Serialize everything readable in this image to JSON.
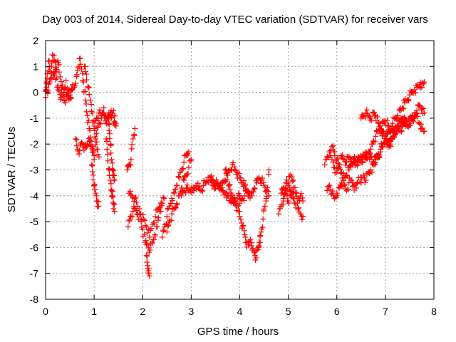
{
  "chart_data": {
    "type": "scatter",
    "title": "Day 003 of 2014, Sidereal Day-to-day VTEC variation (SDTVAR) for receiver vars",
    "xlabel": "GPS time / hours",
    "ylabel": "SDTVAR / TECUs",
    "xlim": [
      0,
      8
    ],
    "ylim": [
      -8,
      2
    ],
    "xticks": [
      "0",
      "1",
      "2",
      "3",
      "4",
      "5",
      "6",
      "7",
      "8"
    ],
    "yticks": [
      "2",
      "1",
      "0",
      "-1",
      "-2",
      "-3",
      "-4",
      "-5",
      "-6",
      "-7",
      "-8"
    ],
    "grid": true,
    "marker": "+",
    "color": "#ff0000",
    "series": [
      {
        "name": "vars",
        "segments": [
          {
            "x": [
              0.0,
              0.03,
              0.06,
              0.1,
              0.14,
              0.18,
              0.22,
              0.26,
              0.3,
              0.34,
              0.38,
              0.42,
              0.46,
              0.5,
              0.55,
              0.6
            ],
            "y": [
              0.1,
              0.55,
              1.2,
              0.8,
              1.45,
              1.25,
              0.9,
              1.15,
              0.6,
              0.2,
              0.0,
              0.45,
              -0.15,
              -0.25,
              0.1,
              0.25
            ]
          },
          {
            "x": [
              0.0,
              0.02,
              0.05,
              0.08,
              0.12,
              0.16,
              0.2,
              0.24,
              0.28,
              0.32,
              0.36,
              0.4,
              0.44,
              0.48,
              0.52,
              0.56
            ],
            "y": [
              -0.2,
              0.2,
              0.05,
              0.4,
              0.75,
              0.65,
              0.8,
              0.2,
              0.05,
              -0.2,
              -0.1,
              -0.3,
              -0.15,
              0.1,
              -0.2,
              0.3
            ]
          },
          {
            "x": [
              0.62,
              0.66,
              0.7,
              0.74,
              0.78,
              0.82,
              0.86,
              0.9,
              0.94,
              0.98,
              1.0
            ],
            "y": [
              0.35,
              0.85,
              1.3,
              0.9,
              0.4,
              -0.3,
              -0.9,
              -1.4,
              -1.9,
              -2.3,
              -2.6
            ]
          },
          {
            "x": [
              0.62,
              0.66,
              0.7,
              0.74,
              0.78,
              0.82,
              0.86,
              0.9,
              0.94,
              0.98
            ],
            "y": [
              -1.8,
              -2.2,
              -2.25,
              -1.95,
              -2.05,
              -2.15,
              -2.0,
              -1.9,
              -2.1,
              -2.2
            ]
          },
          {
            "x": [
              0.8,
              0.84,
              0.88,
              0.92,
              0.96,
              1.0,
              1.03,
              1.06,
              1.1
            ],
            "y": [
              1.0,
              0.7,
              0.2,
              -0.3,
              -0.8,
              -1.4,
              -1.8,
              -2.2,
              -2.5
            ]
          },
          {
            "x": [
              0.95,
              0.98,
              1.0,
              1.03,
              1.06,
              1.09
            ],
            "y": [
              -2.8,
              -3.2,
              -3.6,
              -3.9,
              -4.2,
              -4.4
            ]
          },
          {
            "x": [
              1.05,
              1.1,
              1.15,
              1.2,
              1.25,
              1.3,
              1.35,
              1.4,
              1.45
            ],
            "y": [
              -1.6,
              -1.2,
              -1.0,
              -0.8,
              -1.1,
              -1.0,
              -0.7,
              -1.2,
              -1.3
            ]
          },
          {
            "x": [
              1.0,
              1.05,
              1.1,
              1.15,
              1.2,
              1.25,
              1.3,
              1.35,
              1.4,
              1.45
            ],
            "y": [
              -1.3,
              -1.0,
              -0.8,
              -0.9,
              -0.6,
              -1.2,
              -0.8,
              -1.0,
              -0.7,
              -1.2
            ]
          },
          {
            "x": [
              1.25,
              1.28,
              1.31,
              1.33,
              1.36,
              1.38,
              1.4,
              1.42
            ],
            "y": [
              -1.8,
              -2.4,
              -3.0,
              -3.4,
              -3.8,
              -4.0,
              -4.3,
              -4.6
            ]
          },
          {
            "x": [
              1.3,
              1.32,
              1.34,
              1.36,
              1.38,
              1.4,
              1.42
            ],
            "y": [
              -1.2,
              -1.6,
              -2.0,
              -2.6,
              -3.0,
              -3.2,
              -3.4
            ]
          },
          {
            "x": [
              1.68,
              1.72,
              1.76,
              1.8,
              1.84
            ],
            "y": [
              -3.0,
              -2.8,
              -2.6,
              -1.8,
              -1.4
            ]
          },
          {
            "x": [
              1.7,
              1.75,
              1.8,
              1.85,
              1.9,
              1.95,
              2.0,
              2.05,
              2.1,
              2.15,
              2.2,
              2.25,
              2.3,
              2.35,
              2.4
            ],
            "y": [
              -5.2,
              -4.8,
              -4.6,
              -4.5,
              -4.7,
              -4.9,
              -5.3,
              -5.8,
              -5.9,
              -6.1,
              -5.8,
              -5.5,
              -5.2,
              -4.6,
              -4.3
            ]
          },
          {
            "x": [
              1.72,
              1.78,
              1.84,
              1.9,
              1.96,
              2.02,
              2.08,
              2.14,
              2.2,
              2.26,
              2.32,
              2.38,
              2.44
            ],
            "y": [
              -3.9,
              -4.0,
              -4.1,
              -4.4,
              -4.7,
              -4.9,
              -5.2,
              -5.6,
              -5.1,
              -4.8,
              -4.5,
              -4.3,
              -4.1
            ]
          },
          {
            "x": [
              2.08,
              2.1,
              2.12,
              2.14
            ],
            "y": [
              -6.3,
              -6.7,
              -6.9,
              -7.1
            ]
          },
          {
            "x": [
              2.4,
              2.45,
              2.5,
              2.55,
              2.6,
              2.65,
              2.7,
              2.75,
              2.8,
              2.85,
              2.9,
              2.95
            ],
            "y": [
              -5.6,
              -5.2,
              -4.8,
              -4.4,
              -4.1,
              -3.9,
              -3.6,
              -3.3,
              -3.0,
              -2.7,
              -2.4,
              -2.3
            ]
          },
          {
            "x": [
              2.5,
              2.55,
              2.6,
              2.65,
              2.7,
              2.75,
              2.8,
              2.85,
              2.9,
              2.95,
              3.0
            ],
            "y": [
              -5.4,
              -5.0,
              -4.7,
              -4.5,
              -4.3,
              -4.0,
              -3.7,
              -3.4,
              -3.2,
              -2.9,
              -2.6
            ]
          },
          {
            "x": [
              2.8,
              2.85,
              2.9,
              2.95,
              3.0,
              3.05,
              3.1,
              3.15,
              3.2,
              3.25,
              3.3,
              3.35,
              3.4,
              3.45,
              3.5,
              3.55,
              3.6,
              3.65,
              3.7,
              3.75,
              3.8,
              3.85,
              3.9,
              3.95,
              4.0
            ],
            "y": [
              -4.0,
              -3.8,
              -3.7,
              -3.8,
              -3.7,
              -3.8,
              -3.6,
              -3.7,
              -3.8,
              -3.6,
              -3.5,
              -3.3,
              -3.4,
              -3.6,
              -3.7,
              -3.5,
              -3.6,
              -3.8,
              -3.9,
              -4.0,
              -4.2,
              -4.1,
              -4.3,
              -4.1,
              -4.0
            ]
          },
          {
            "x": [
              3.4,
              3.45,
              3.5,
              3.55,
              3.6,
              3.65,
              3.7,
              3.75,
              3.8,
              3.85,
              3.9,
              3.95,
              4.0,
              4.05,
              4.1,
              4.15,
              4.2
            ],
            "y": [
              -3.3,
              -3.4,
              -3.5,
              -3.6,
              -3.7,
              -3.5,
              -3.4,
              -3.2,
              -3.0,
              -2.8,
              -3.0,
              -3.1,
              -3.3,
              -3.5,
              -3.6,
              -3.8,
              -3.9
            ]
          },
          {
            "x": [
              3.7,
              3.74,
              3.78,
              3.82,
              3.86,
              3.9,
              3.94,
              3.98,
              4.02,
              4.06,
              4.1,
              4.14,
              4.18,
              4.22,
              4.26,
              4.3,
              4.34,
              4.38,
              4.42
            ],
            "y": [
              -3.0,
              -3.2,
              -3.6,
              -3.9,
              -4.1,
              -4.2,
              -4.4,
              -4.6,
              -4.9,
              -5.2,
              -5.5,
              -5.8,
              -5.9,
              -5.7,
              -6.1,
              -6.2,
              -6.4,
              -6.0,
              -5.8
            ]
          },
          {
            "x": [
              4.0,
              4.05,
              4.1,
              4.15,
              4.2,
              4.25,
              4.3,
              4.35,
              4.4,
              4.45,
              4.5,
              4.55,
              4.6
            ],
            "y": [
              -4.3,
              -4.1,
              -4.0,
              -3.8,
              -3.9,
              -4.0,
              -3.7,
              -3.5,
              -3.3,
              -3.4,
              -3.6,
              -3.8,
              -4.0
            ]
          },
          {
            "x": [
              4.4,
              4.44,
              4.48,
              4.52,
              4.56,
              4.6
            ],
            "y": [
              -5.8,
              -5.4,
              -4.9,
              -4.4,
              -3.8,
              -3.0
            ]
          },
          {
            "x": [
              4.8,
              4.85,
              4.9,
              4.95,
              5.0,
              5.05,
              5.1,
              5.15,
              5.2,
              5.25,
              5.3
            ],
            "y": [
              -4.7,
              -4.4,
              -4.1,
              -3.9,
              -4.2,
              -4.0,
              -3.7,
              -3.9,
              -4.1,
              -4.0,
              -4.2
            ]
          },
          {
            "x": [
              4.85,
              4.9,
              4.95,
              5.0,
              5.05,
              5.1,
              5.15,
              5.2,
              5.25,
              5.3
            ],
            "y": [
              -3.9,
              -3.7,
              -3.5,
              -3.6,
              -3.8,
              -4.1,
              -4.3,
              -4.5,
              -4.7,
              -4.8
            ]
          },
          {
            "x": [
              4.9,
              4.95,
              5.0,
              5.05,
              5.1
            ],
            "y": [
              -4.2,
              -3.8,
              -3.5,
              -3.2,
              -3.4
            ]
          },
          {
            "x": [
              5.75,
              5.8,
              5.85,
              5.9,
              5.95,
              6.0,
              6.05,
              6.1,
              6.15,
              6.2,
              6.25,
              6.3,
              6.35,
              6.4,
              6.45,
              6.5,
              6.55,
              6.6,
              6.65,
              6.7,
              6.75,
              6.8,
              6.85,
              6.9,
              6.95
            ],
            "y": [
              -2.8,
              -2.5,
              -2.3,
              -2.6,
              -2.9,
              -3.1,
              -2.8,
              -2.5,
              -2.6,
              -2.7,
              -2.5,
              -2.6,
              -2.7,
              -2.8,
              -2.6,
              -2.7,
              -2.5,
              -2.6,
              -2.4,
              -2.5,
              -2.7,
              -2.6,
              -2.5,
              -2.3,
              -2.1
            ]
          },
          {
            "x": [
              5.8,
              5.85,
              5.9,
              5.95,
              6.0,
              6.05,
              6.1,
              6.15,
              6.2,
              6.25,
              6.3,
              6.35,
              6.4,
              6.45,
              6.5,
              6.55,
              6.6,
              6.65,
              6.7,
              6.75,
              6.8
            ],
            "y": [
              -3.8,
              -3.6,
              -3.9,
              -4.1,
              -3.9,
              -3.7,
              -3.5,
              -3.6,
              -3.8,
              -3.5,
              -3.4,
              -3.6,
              -3.7,
              -3.3,
              -3.5,
              -3.2,
              -3.4,
              -3.1,
              -3.0,
              -2.8,
              -2.7
            ]
          },
          {
            "x": [
              5.9,
              5.95,
              6.0,
              6.05,
              6.1,
              6.15,
              6.2,
              6.25,
              6.3,
              6.35,
              6.4,
              6.45,
              6.5,
              6.55,
              6.6,
              6.65,
              6.7
            ],
            "y": [
              -2.1,
              -2.3,
              -2.6,
              -2.9,
              -3.1,
              -3.3,
              -3.2,
              -3.0,
              -2.8,
              -2.6,
              -2.7,
              -2.5,
              -2.6,
              -2.4,
              -2.5,
              -2.3,
              -2.2
            ]
          },
          {
            "x": [
              6.7,
              6.75,
              6.8,
              6.85,
              6.9,
              6.95,
              7.0,
              7.05,
              7.1,
              7.15,
              7.2,
              7.25,
              7.3,
              7.35,
              7.4,
              7.45,
              7.5,
              7.55,
              7.6,
              7.65,
              7.7,
              7.75,
              7.8
            ],
            "y": [
              -2.2,
              -1.9,
              -1.7,
              -1.5,
              -1.3,
              -1.2,
              -1.1,
              -1.3,
              -1.5,
              -1.2,
              -1.0,
              -0.9,
              -0.7,
              -0.6,
              -0.4,
              -0.3,
              -0.1,
              0.0,
              0.1,
              0.2,
              0.3,
              0.2,
              0.4
            ]
          },
          {
            "x": [
              6.8,
              6.85,
              6.9,
              6.95,
              7.0,
              7.05,
              7.1,
              7.15,
              7.2,
              7.25,
              7.3,
              7.35,
              7.4,
              7.45,
              7.5,
              7.55,
              7.6,
              7.65,
              7.7,
              7.75,
              7.8
            ],
            "y": [
              -2.6,
              -2.4,
              -2.2,
              -2.0,
              -1.8,
              -1.6,
              -1.4,
              -1.5,
              -1.6,
              -1.3,
              -1.1,
              -1.2,
              -1.0,
              -1.3,
              -1.1,
              -0.9,
              -1.0,
              -0.8,
              -1.2,
              -1.4,
              -1.5
            ]
          },
          {
            "x": [
              6.5,
              6.55,
              6.6,
              6.65,
              6.7,
              6.75,
              6.8,
              6.85,
              6.9,
              6.95,
              7.0,
              7.05,
              7.1,
              7.15,
              7.2,
              7.25,
              7.3,
              7.35,
              7.4,
              7.45,
              7.5,
              7.55,
              7.6,
              7.65,
              7.7,
              7.75,
              7.8
            ],
            "y": [
              -1.0,
              -0.9,
              -0.8,
              -0.9,
              -1.0,
              -0.8,
              -0.9,
              -1.2,
              -1.4,
              -1.6,
              -1.8,
              -2.0,
              -1.9,
              -1.7,
              -1.5,
              -1.3,
              -1.2,
              -1.0,
              -1.1,
              -1.3,
              -1.2,
              -1.1,
              -0.9,
              -0.7,
              -0.5,
              -0.6,
              -0.8
            ]
          },
          {
            "x": [
              6.9,
              6.95,
              7.0,
              7.05,
              7.1,
              7.15,
              7.2,
              7.25,
              7.3,
              7.35,
              7.4
            ],
            "y": [
              -1.6,
              -1.5,
              -1.7,
              -1.9,
              -2.0,
              -1.8,
              -1.6,
              -1.4,
              -1.5,
              -1.3,
              -1.2
            ]
          }
        ]
      }
    ]
  }
}
